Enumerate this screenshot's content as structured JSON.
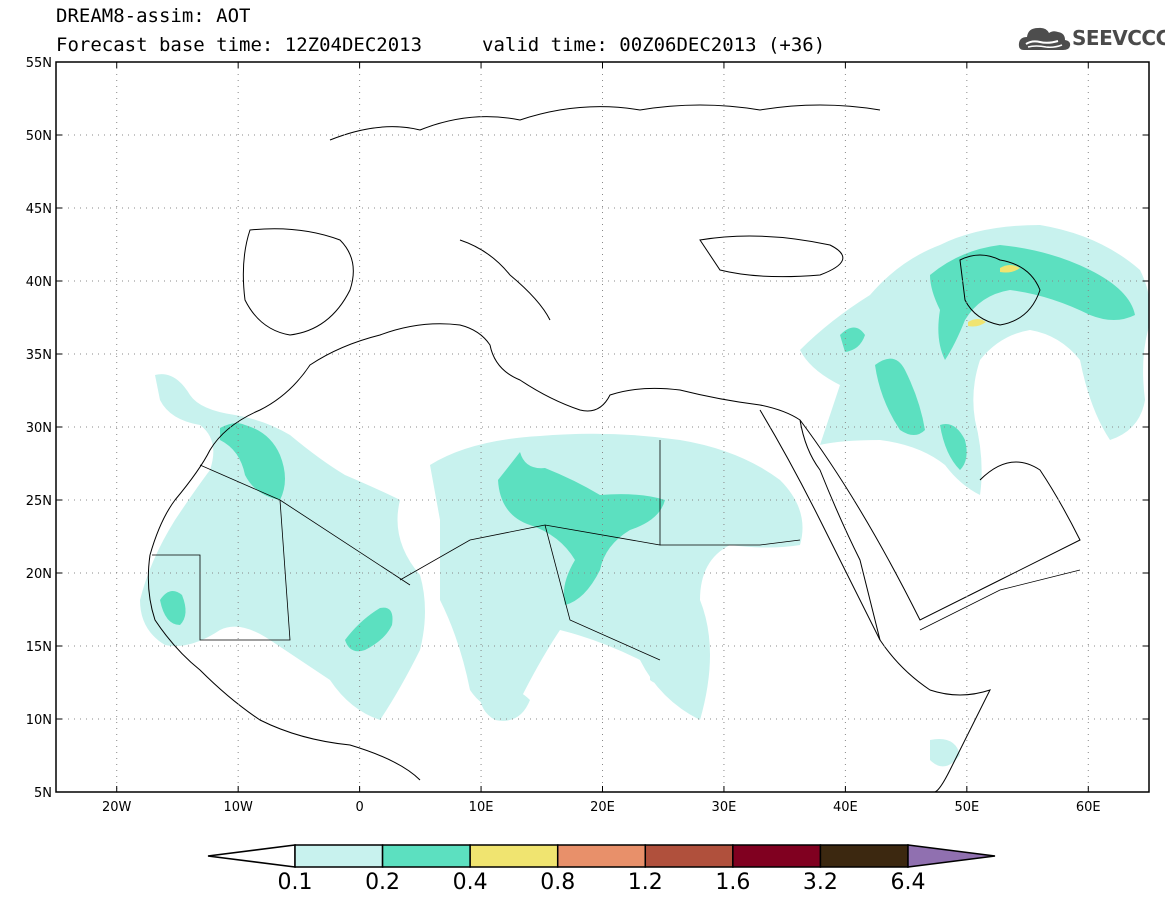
{
  "header": {
    "title": "DREAM8-assim: AOT",
    "base_time": "Forecast base time: 12Z04DEC2013",
    "valid_time": "valid time: 00Z06DEC2013 (+36)"
  },
  "logo": {
    "text": "SEEVCCC",
    "icon": "cloud-icon"
  },
  "axes": {
    "lat_labels": [
      "55N",
      "50N",
      "45N",
      "40N",
      "35N",
      "30N",
      "25N",
      "20N",
      "15N",
      "10N",
      "5N"
    ],
    "lat_values": [
      55,
      50,
      45,
      40,
      35,
      30,
      25,
      20,
      15,
      10,
      5
    ],
    "lon_labels": [
      "20W",
      "10W",
      "0",
      "10E",
      "20E",
      "30E",
      "40E",
      "50E",
      "60E"
    ],
    "lon_values": [
      -20,
      -10,
      0,
      10,
      20,
      30,
      40,
      50,
      60
    ],
    "lon_range": [
      -25,
      65
    ],
    "lat_range": [
      5,
      55
    ],
    "grid": "dotted"
  },
  "colorbar": {
    "labels": [
      "0.1",
      "0.2",
      "0.4",
      "0.8",
      "1.2",
      "1.6",
      "3.2",
      "6.4"
    ],
    "colors": [
      "#ffffff",
      "#c8f2ee",
      "#5ce0c0",
      "#f0e470",
      "#e8906a",
      "#b0503c",
      "#800020",
      "#3c2810",
      "#9070b0"
    ]
  },
  "field_colors": {
    "low": "#c8f2ee",
    "mid": "#5ce0c0",
    "high": "#f0e470"
  }
}
